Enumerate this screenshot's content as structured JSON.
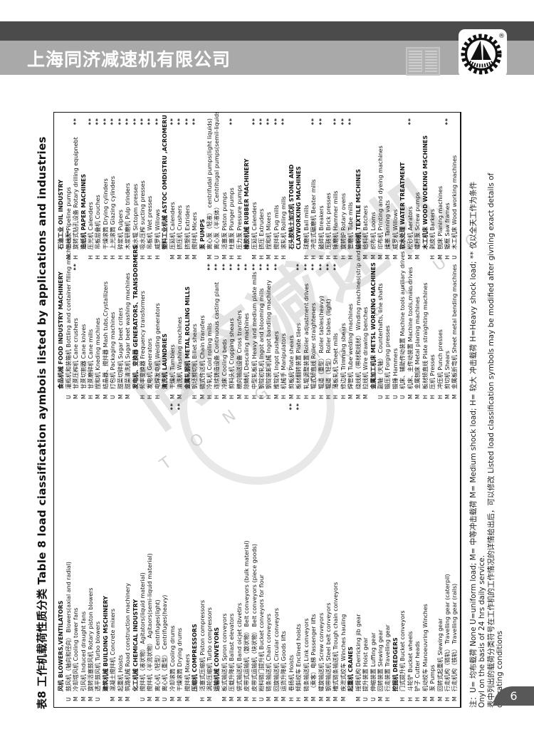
{
  "header": {
    "company": "上海同济减速机有限公司"
  },
  "logo": {
    "registered_mark": "®"
  },
  "watermark": {
    "cn": "同济减速机",
    "en": "T O N G J I   R E D U C E R"
  },
  "doc": {
    "title": "表8 工作机载荷性质分类  Table 8 load ciassification aymbois listed by applications and industries",
    "page_number": "6"
  },
  "notes": [
    "注：U= 均布载荷  None U=uniform load;  M= 中等冲击载荷 M= Medium shock load;  H= 较大 冲击载荷 H=Heavy shock load; ** 仅以全天工作为条件",
    "Onyl on the basis of 24 hrs daily service.",
    "表中列出的载荷分类符号在工作机的工作情况的详情给出后，可以修改  Listed load classification symbols may be modified after givning exact details of",
    "operating conditions"
  ],
  "table": {
    "legend": {
      "U": "uniform load",
      "M": "medium shock load",
      "H": "heavy shock load"
    },
    "rows": [
      [
        {
          "s": "",
          "t": "风机 BLOWERS,VENTILATORS",
          "h": true
        },
        {
          "s": "",
          "t": "食品机械 FOOD INDUSTRY MACHINERY",
          "h": true
        },
        {
          "s": "",
          "t": "石油工业 OIL INDUSTRY",
          "h": true
        }
      ],
      [
        {
          "s": "U",
          "t": "鼓风机（轴向和径向） Blowers(axial and radial)"
        },
        {
          "s": "U",
          "t": "灌瓶机和装箱机 Bottling and container filling machines",
          "a": true
        },
        {
          "s": "M",
          "t": "管线泵 Pipeline pumps"
        }
      ],
      [
        {
          "s": "M",
          "t": "冷却塔风机 Cooling tower fans"
        },
        {
          "s": "M",
          "t": "甘蔗压榨机 Cane crushers",
          "a": true
        },
        {
          "s": "H",
          "t": "旋转式钻孔设备 Rotary drilling equipnebt",
          "a": true
        }
      ],
      [
        {
          "s": "M",
          "t": "引风机 Induced draught fans"
        },
        {
          "s": "M",
          "t": "甘蔗切割器 Cane knives"
        },
        {
          "s": "",
          "t": "造纸机 PAPER MACHINES",
          "h": true
        }
      ],
      [
        {
          "s": "M",
          "t": "旋转活塞鼓风机 Rotary piston blowers"
        },
        {
          "s": "H",
          "t": "甘蔗磨碎机 Cane mills"
        },
        {
          "s": "H",
          "t": "压光机 Calenders",
          "a": true
        }
      ],
      [
        {
          "s": "U",
          "t": "透平鼓风机 Turbo blowers"
        },
        {
          "s": "M",
          "t": "捏和机 Kneding machines"
        },
        {
          "s": "H",
          "t": "吊板层叠机 Couches",
          "a": true
        }
      ],
      [
        {
          "s": "",
          "t": "建筑机械 BUILDING MSCHINERY",
          "h": true
        },
        {
          "s": "M",
          "t": "结晶器、搅拌器 Mash tubs,Crystallizers"
        },
        {
          "s": "H",
          "t": "干燥滚筒 Drying cylinders",
          "a": true
        }
      ],
      [
        {
          "s": "M",
          "t": "混凝土搅拌机 Concrete mixers"
        },
        {
          "s": "U",
          "t": "打包机 Packaging machines"
        },
        {
          "s": "H",
          "t": "上光滚筒 Glazing cylinders",
          "a": true
        }
      ],
      [
        {
          "s": "M",
          "t": "起重机 Hoists"
        },
        {
          "s": "M",
          "t": "甜菜切碎机 Sugar beet criters"
        },
        {
          "s": "H",
          "t": "碎浆机 Pulpers",
          "a": true
        }
      ],
      [
        {
          "s": "M",
          "t": "筑路机械 Road construction machinery"
        },
        {
          "s": "M",
          "t": "甜菜清洗机 Sugar beet washing machines"
        },
        {
          "s": "H",
          "t": "木浆研磨机 Pulp trinders",
          "a": true
        }
      ],
      [
        {
          "s": "",
          "t": "化工机械 CHEMICAL INDUSTRY",
          "h": true
        },
        {
          "s": "",
          "t": "发电机、变换器 GENERATORS、TRANSDORMERS",
          "h": true
        },
        {
          "s": "H",
          "t": "吸水辊 Sictopm presses",
          "a": true
        }
      ],
      [
        {
          "s": "U",
          "t": "搅拌机（液状物） Agitators(liquid material)"
        },
        {
          "s": "H",
          "t": "频率变换器 Frequency transformers"
        },
        {
          "s": "H",
          "t": "吸水压榨 sucting presses",
          "a": true
        }
      ],
      [
        {
          "s": "M",
          "t": "搅拌机（半流状物） Agitaors(semi-liquid material)"
        },
        {
          "s": "H",
          "t": "发电机 Generators"
        },
        {
          "s": "H",
          "t": "吊板机 Wet presses",
          "a": true
        }
      ],
      [
        {
          "s": "M",
          "t": "离心机（轻型） Centrifuges(light)"
        },
        {
          "s": "H",
          "t": "电焊发电机 Welding generators"
        },
        {
          "s": "H",
          "t": "威罗机 Willows",
          "a": true
        }
      ],
      [
        {
          "s": "U",
          "t": "离心机（重型） Centrifuges(heavy)"
        },
        {
          "s": "",
          "t": "清洗机 LAUNDRIES",
          "h": true
        },
        {
          "s": "",
          "t": "塑料工业机械 ASTOC OMDISTRU ,ACROMERU",
          "h": true
        }
      ],
      [
        {
          "s": "M",
          "t": "冷却滚筒 Cooling drums",
          "a": true
        },
        {
          "s": "M",
          "t": "干燥机 Tumblers"
        },
        {
          "s": "M",
          "t": "压延机 Calenders",
          "a": true
        }
      ],
      [
        {
          "s": "M",
          "t": "干燥滚筒 Drying drums",
          "a": true
        },
        {
          "s": "M",
          "t": "清洗机 Washing machines"
        },
        {
          "s": "M",
          "t": "挤压机 Crushers",
          "a": true
        }
      ],
      [
        {
          "s": "M",
          "t": "搅拌机 Mixers"
        },
        {
          "s": "",
          "t": "金属轧钢机 METAL ROLLING MILLS",
          "h": true
        },
        {
          "s": "M",
          "t": "挤塑机 Extriders",
          "a": true
        }
      ],
      [
        {
          "s": "",
          "t": "压缩机 COMPRESSORS",
          "h": true
        },
        {
          "s": "H",
          "t": "钢坯剪切机 Billet shears"
        },
        {
          "s": "M",
          "t": "搅拌机 Micers",
          "a": true
        }
      ],
      [
        {
          "s": "H",
          "t": "活塞式压缩机 Piston compressors"
        },
        {
          "s": "M",
          "t": "链式传送机 Chain transfers"
        },
        {
          "s": "",
          "t": "泵 PUMPS",
          "h": true
        }
      ],
      [
        {
          "s": "M",
          "t": "涡轮压缩机 Turbo compressors"
        },
        {
          "s": "H",
          "t": "冷轧机 Cold rolling mills",
          "a": true
        },
        {
          "s": "M",
          "t": "离心泵（轻液） centrifudal pumps(light liquids)"
        }
      ],
      [
        {
          "s": "",
          "t": "运输机械 CONVEYORS",
          "h": true
        },
        {
          "s": "H",
          "t": "连续铸造设备 Continuous casting plant",
          "a": true
        },
        {
          "s": "U",
          "t": "离心泵（半液体） Centritugal pumps(semil-liquids)"
        }
      ],
      [
        {
          "s": "M",
          "t": "板式输送机 Spron conveyors"
        },
        {
          "s": "M",
          "t": "冷床 Cooling beds",
          "a": true
        },
        {
          "s": "M",
          "t": "活塞泵 Piston pumps"
        }
      ],
      [
        {
          "s": "M",
          "t": "压载升降机 Ballast elevators"
        },
        {
          "s": "H",
          "t": "剪料头机 Cropping shears",
          "a": true
        },
        {
          "s": "H",
          "t": "柱塞泵 Plunger pumps",
          "a": true
        }
      ],
      [
        {
          "s": "M",
          "t": "袋式输送机 Band oicjet cibvetirs"
        },
        {
          "s": "M",
          "t": "横向输送设备 Cross transfers",
          "a": true
        },
        {
          "s": "H",
          "t": "压力泵 Pressure pumps"
        }
      ],
      [
        {
          "s": "M",
          "t": "皮带式运输机（散状物） Belt conveyors (bulk material)"
        },
        {
          "s": "H",
          "t": "除鳞机 Descaling machines",
          "a": true
        },
        {
          "s": "",
          "t": "橡胶机械 RUBBER MACHINERY",
          "h": true
        }
      ],
      [
        {
          "s": "H",
          "t": "皮带式运输机（块状物） Belt conveyors (piece goods)"
        },
        {
          "s": "H",
          "t": "中型轧板机 Heavy and medium plate mills",
          "a": true
        },
        {
          "s": "M",
          "t": "压延机 Calenders",
          "a": true
        }
      ],
      [
        {
          "s": "U",
          "t": "粉料链门提升机 Bucket conveyors for flour"
        },
        {
          "s": "H",
          "t": "钢锭初轧机 Ingot and blooming mills",
          "a": true
        },
        {
          "s": "H",
          "t": "挤压 Extruders",
          "a": true
        }
      ],
      [
        {
          "s": "M",
          "t": "链条输送机 Chain conveyors"
        },
        {
          "s": "H",
          "t": "钢锭装卸机械 Ingot bandling machinery",
          "a": true
        },
        {
          "s": "M",
          "t": "捏和机 Mixers",
          "a": true
        }
      ],
      [
        {
          "s": "M",
          "t": "回旋输送机 Circular conveyors"
        },
        {
          "s": "M",
          "t": "推锭机 Ingot pushers",
          "a": true
        },
        {
          "s": "H",
          "t": "搅拌机 Pug mills",
          "a": true
        }
      ],
      [
        {
          "s": "M",
          "t": "运货升降机 Goods lifts"
        },
        {
          "s": "H",
          "t": "机械手 Manipulators"
        },
        {
          "s": "H",
          "t": "滚轧机 Rolling mills",
          "a": true
        }
      ],
      [
        {
          "s": "H",
          "t": "卷扬机 Hoists",
          "a": true
        },
        {
          "s": "M",
          "t": "剪板机 Plate shears"
        },
        {
          "s": "",
          "t": "石头胶粘土加式机 STONE AND",
          "h": true
        }
      ],
      [
        {
          "s": "H",
          "t": "倾斜绞车 Enclined hoists",
          "a": true
        },
        {
          "s": "H",
          "t": "板材翻转装置 Plate tilers",
          "a": true
        },
        {
          "s": "",
          "t": "CLAYWORKING MACHINES",
          "h": true
        }
      ],
      [
        {
          "s": "M",
          "t": "链条输送机 Link conveyors"
        },
        {
          "s": "H",
          "t": "轧辊调整装置 Roller adjustment drives",
          "a": true
        },
        {
          "s": "H",
          "t": "球磨机 Ball mills"
        }
      ],
      [
        {
          "s": "M",
          "t": "（乘客）电梯 Passenger lifts"
        },
        {
          "s": "H",
          "t": "辊式矫直线 Roller straighteners",
          "a": true
        },
        {
          "s": "H",
          "t": "冲击式碾磨机 Beater mills",
          "a": true
        }
      ],
      [
        {
          "s": "M",
          "t": "螺旋输送机 Screw conveyors"
        },
        {
          "s": "H",
          "t": "辊道（重型） Roller tables(heavy)",
          "a": true
        },
        {
          "s": "H",
          "t": "破碎机 Breakers",
          "a": true
        }
      ],
      [
        {
          "s": "M",
          "t": "钢带输送机 Steel belt conveyors"
        },
        {
          "s": "H",
          "t": "辊道（轻型） Roller tables (light)",
          "a": true
        },
        {
          "s": "H",
          "t": "压砖机 Brick presses"
        }
      ],
      [
        {
          "s": "M",
          "t": "槽式链条输送机 Trough chain conveyors"
        },
        {
          "s": "H",
          "t": "薄板轧机 Sheet mills",
          "a": true
        },
        {
          "s": "H",
          "t": "锤磨机 Hammer mills",
          "a": true
        }
      ],
      [
        {
          "s": "M",
          "t": "疾泄式绞车 Winches hauling"
        },
        {
          "s": "H",
          "t": "修边机 Trimming shears"
        },
        {
          "s": "H",
          "t": "旋转炉 Rotary ovens",
          "a": true
        }
      ],
      [
        {
          "s": "",
          "t": "起重机 CRANES",
          "h": true
        },
        {
          "s": "M",
          "t": "焊管机 Tube welding machines"
        },
        {
          "s": "H",
          "t": "管磨机 Tube mills",
          "a": true
        }
      ],
      [
        {
          "s": "M",
          "t": "摇臂机构 Derricking jib gear"
        },
        {
          "s": "M",
          "t": "绕线机（带材和线材） Winding machines(strip and wire)"
        },
        {
          "s": "",
          "t": "纺织机 TEXTILE MSCHINES",
          "h": true
        }
      ],
      [
        {
          "s": "U",
          "t": "提升装置 Hoist gear"
        },
        {
          "s": "M",
          "t": "拉线机 Wire drawing benches"
        },
        {
          "s": "M",
          "t": "给料机 Batchers"
        }
      ],
      [
        {
          "s": "U",
          "t": "伸缩装置 Luffing gear"
        },
        {
          "s": "",
          "t": "金属加工机床 METSL WORKING MACHINES",
          "h": true
        },
        {
          "s": "M",
          "t": "织布机 Looms"
        }
      ],
      [
        {
          "s": "M",
          "t": "回转装置 Slewing gear"
        },
        {
          "s": "U",
          "t": "副轴（天轴） Counterhafts, line shafts"
        },
        {
          "s": "M",
          "t": "印布机 Printing and dyeing machines"
        }
      ],
      [
        {
          "s": "H",
          "t": "行走装置 Travelling gear"
        },
        {
          "s": "H",
          "t": "锻压机 Forging presses"
        },
        {
          "s": "M",
          "t": "揉革 Tanning vats"
        }
      ],
      [
        {
          "s": "",
          "t": "挖掘机 DREDGERS",
          "h": true
        },
        {
          "s": "U",
          "t": "锻锤 Hammers"
        },
        {
          "s": "M",
          "t": "威罗机 Willows"
        }
      ],
      [
        {
          "s": "H",
          "t": "门式提升机 Bucket conveyors"
        },
        {
          "s": "U",
          "t": "机床、辅助传动装置 Machine tools auxiliary drives"
        },
        {
          "s": "",
          "t": "软水处理 WATER TREATMENT",
          "h": true
        }
      ],
      [
        {
          "s": "H",
          "t": "斗轮铲 Bucket wheels"
        },
        {
          "s": "M",
          "t": "机床、主传动装置 Machine tools,main drives"
        },
        {
          "s": "M",
          "t": "松砂机 Aerators",
          "a": true
        }
      ],
      [
        {
          "s": "H",
          "t": "铲子 Cutter heads"
        },
        {
          "s": "M",
          "t": "金属刨床 Metal planing machines"
        },
        {
          "s": "M",
          "t": "螺杆泵 Screw pumps"
        }
      ],
      [
        {
          "s": "M",
          "t": "机动绞车 Manoeuvring Winches"
        },
        {
          "s": "H",
          "t": "板材矫直线 Plate straighting machines"
        },
        {
          "s": "",
          "t": "木工机床 WOOD WOEKING MSCHINES",
          "h": true
        }
      ],
      [
        {
          "s": "M",
          "t": "泵 Pumps"
        },
        {
          "s": "H",
          "t": "压机 Presses"
        },
        {
          "s": "H",
          "t": "剥皮机 Barkers"
        }
      ],
      [
        {
          "s": "M",
          "t": "回转式起重机 Slewing gear"
        },
        {
          "s": "H",
          "t": "冲压机 Punch presses"
        },
        {
          "s": "M",
          "t": "刨床 Planing machines"
        }
      ],
      [
        {
          "s": "H",
          "t": "行走机构（链轨） Travelling gear (caterpil)"
        },
        {
          "s": "M",
          "t": "剪切机 Shears"
        },
        {
          "s": "H",
          "t": "锯框 Saw frames",
          "a": true
        }
      ],
      [
        {
          "s": "M",
          "t": "行走机构（铁轨） Travelling gear (rails)"
        },
        {
          "s": "M",
          "t": "金属板折弯机 Sheet metal bending machines"
        },
        {
          "s": "U",
          "t": "木工机床 Wood working machines"
        }
      ]
    ]
  }
}
